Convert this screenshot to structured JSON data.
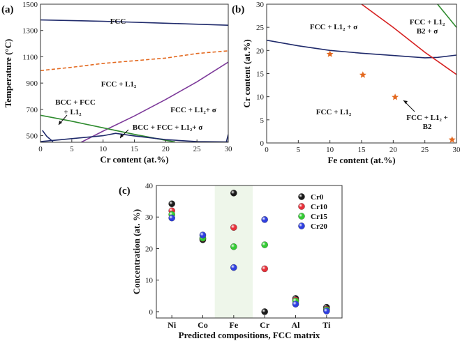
{
  "chart_data": [
    {
      "panel_label": "(a)",
      "type": "line",
      "xlabel": "Cr content (at.%)",
      "ylabel": "Temperature (°C)",
      "xlim": [
        0,
        30
      ],
      "ylim": [
        450,
        1500
      ],
      "xticks": [
        "0",
        "5",
        "10",
        "15",
        "20",
        "25",
        "30"
      ],
      "yticks": [
        "500",
        "700",
        "900",
        "1100",
        "1300",
        "1500"
      ],
      "series": [
        {
          "color": "#1f2a6b",
          "style": "solid",
          "points": [
            [
              0,
              1380
            ],
            [
              10,
              1370
            ],
            [
              20,
              1355
            ],
            [
              30,
              1340
            ]
          ]
        },
        {
          "color": "#e3681e",
          "style": "dashed",
          "points": [
            [
              0,
              995
            ],
            [
              5,
              1020
            ],
            [
              10,
              1050
            ],
            [
              15,
              1070
            ],
            [
              20,
              1090
            ],
            [
              25,
              1125
            ],
            [
              30,
              1145
            ]
          ]
        },
        {
          "color": "#7d3a9a",
          "style": "solid",
          "points": [
            [
              6.5,
              450
            ],
            [
              10,
              535
            ],
            [
              15,
              650
            ],
            [
              20,
              775
            ],
            [
              25,
              910
            ],
            [
              30,
              1060
            ]
          ]
        },
        {
          "color": "#2e8b2e",
          "style": "solid",
          "points": [
            [
              0,
              655
            ],
            [
              5,
              610
            ],
            [
              10,
              560
            ],
            [
              15,
              510
            ],
            [
              20,
              465
            ],
            [
              21.5,
              452
            ]
          ]
        },
        {
          "color": "#1f2a6b",
          "style": "solid",
          "points": [
            [
              0.3,
              540
            ],
            [
              1,
              495
            ],
            [
              2,
              455
            ]
          ]
        },
        {
          "color": "#1f2a6b",
          "style": "solid",
          "points": [
            [
              0,
              455
            ],
            [
              10,
              500
            ],
            [
              12,
              518
            ],
            [
              15,
              498
            ],
            [
              20,
              470
            ],
            [
              25,
              455
            ],
            [
              30,
              452
            ]
          ]
        },
        {
          "color": "#1f2a6b",
          "style": "solid",
          "points": [
            [
              29.7,
              452
            ],
            [
              30,
              510
            ]
          ]
        }
      ],
      "regions": [
        "FCC",
        "FCC + L1₂",
        "FCC + L1₂+ σ",
        "BCC + FCC",
        "+ L1₂",
        "BCC + FCC + L1₂+ σ"
      ]
    },
    {
      "panel_label": "(b)",
      "type": "scatter",
      "xlabel": "Fe content (at.%)",
      "ylabel": "Cr content (at.%)",
      "xlim": [
        0,
        30
      ],
      "ylim": [
        0,
        30
      ],
      "xticks": [
        "0",
        "5",
        "10",
        "15",
        "20",
        "25",
        "30"
      ],
      "yticks": [
        "0",
        "5",
        "10",
        "15",
        "20",
        "25",
        "30"
      ],
      "series": [
        {
          "color": "#1f2a6b",
          "style": "solid",
          "points": [
            [
              0,
              22.2
            ],
            [
              5,
              21
            ],
            [
              10,
              20
            ],
            [
              15,
              19.4
            ],
            [
              20,
              18.9
            ],
            [
              25,
              18.4
            ],
            [
              27,
              18.5
            ],
            [
              30,
              19
            ]
          ]
        },
        {
          "color": "#d62020",
          "style": "solid",
          "points": [
            [
              15,
              30
            ],
            [
              20,
              25
            ],
            [
              25,
              19.6
            ],
            [
              30,
              14.8
            ]
          ]
        },
        {
          "color": "#2e8b2e",
          "style": "solid",
          "points": [
            [
              27,
              30
            ],
            [
              30,
              25
            ]
          ]
        }
      ],
      "markers": {
        "color": "#e3681e",
        "shape": "star",
        "points": [
          [
            10,
            19.2
          ],
          [
            15.2,
            14.7
          ],
          [
            20.3,
            9.9
          ],
          [
            29.3,
            0.7
          ]
        ]
      },
      "regions": [
        "FCC + L1₂ + σ",
        "FCC + L1₂",
        "B2 +  σ",
        "FCC + L1₂",
        "FCC + L1₂ +",
        "B2"
      ]
    },
    {
      "panel_label": "(c)",
      "type": "scatter",
      "xlabel": "Predicted compositions, FCC matrix",
      "ylabel": "Concentration (at. %)",
      "categories": [
        "Ni",
        "Co",
        "Fe",
        "Cr",
        "Al",
        "Ti"
      ],
      "ylim": [
        -2,
        40
      ],
      "yticks": [
        "0",
        "10",
        "20",
        "30",
        "40"
      ],
      "highlight_category": "Fe",
      "highlight_color": "#eef6ea",
      "series": [
        {
          "name": "Cr0",
          "color": "#1a1a1a",
          "values": [
            34.2,
            22.8,
            37.6,
            0,
            4.2,
            1.4
          ]
        },
        {
          "name": "Cr10",
          "color": "#e8303a",
          "values": [
            32.0,
            23.2,
            26.7,
            13.6,
            3.7,
            0.8
          ]
        },
        {
          "name": "Cr15",
          "color": "#33cc33",
          "values": [
            30.8,
            23.3,
            20.6,
            21.2,
            3.4,
            0.6
          ]
        },
        {
          "name": "Cr20",
          "color": "#2f3fe0",
          "values": [
            29.7,
            24.3,
            14.0,
            29.2,
            2.4,
            0.2
          ]
        }
      ]
    }
  ]
}
